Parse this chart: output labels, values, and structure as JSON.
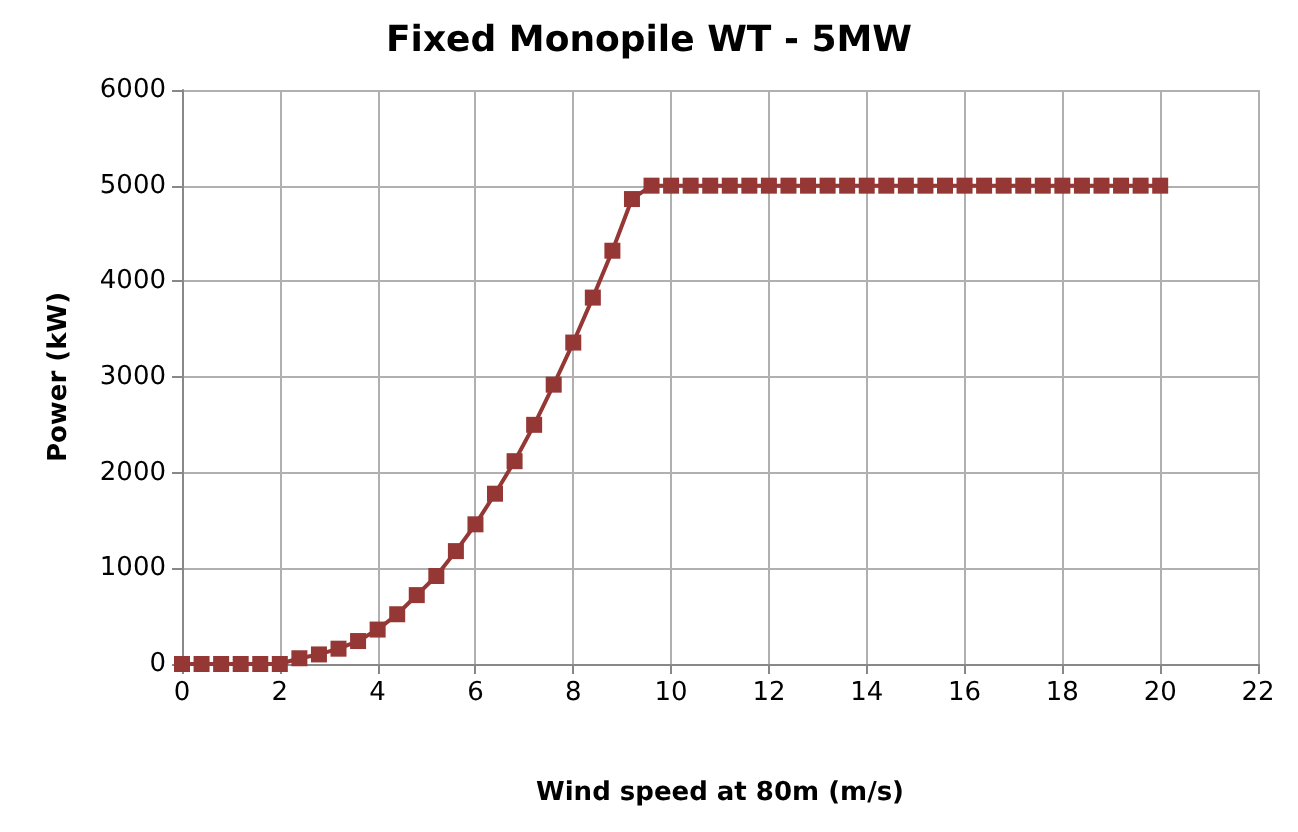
{
  "chart_data": {
    "type": "line",
    "title": "Fixed Monopile WT - 5MW",
    "xlabel": "Wind speed at 80m (m/s)",
    "ylabel": "Power (kW)",
    "x": [
      0,
      0.4,
      0.8,
      1.2,
      1.6,
      2.0,
      2.4,
      2.8,
      3.2,
      3.6,
      4.0,
      4.4,
      4.8,
      5.2,
      5.6,
      6.0,
      6.4,
      6.8,
      7.2,
      7.6,
      8.0,
      8.4,
      8.8,
      9.2,
      9.6,
      10.0,
      10.4,
      10.8,
      11.2,
      11.6,
      12.0,
      12.4,
      12.8,
      13.2,
      13.6,
      14.0,
      14.4,
      14.8,
      15.2,
      15.6,
      16.0,
      16.4,
      16.8,
      17.2,
      17.6,
      18.0,
      18.4,
      18.8,
      19.2,
      19.6,
      20.0
    ],
    "series": [
      {
        "color": "#953735",
        "values": [
          0,
          0,
          0,
          0,
          0,
          0,
          60,
          100,
          160,
          240,
          360,
          520,
          720,
          920,
          1180,
          1460,
          1780,
          2120,
          2500,
          2920,
          3360,
          3830,
          4320,
          4860,
          5000,
          5000,
          5000,
          5000,
          5000,
          5000,
          5000,
          5000,
          5000,
          5000,
          5000,
          5000,
          5000,
          5000,
          5000,
          5000,
          5000,
          5000,
          5000,
          5000,
          5000,
          5000,
          5000,
          5000,
          5000,
          5000,
          5000
        ]
      }
    ],
    "xlim": [
      0,
      22
    ],
    "xticks": [
      0,
      2,
      4,
      6,
      8,
      10,
      12,
      14,
      16,
      18,
      20,
      22
    ],
    "ylim": [
      0,
      6000
    ],
    "yticks": [
      0,
      1000,
      2000,
      3000,
      4000,
      5000,
      6000
    ],
    "grid": true,
    "marker": "square",
    "line_style": "solid"
  }
}
